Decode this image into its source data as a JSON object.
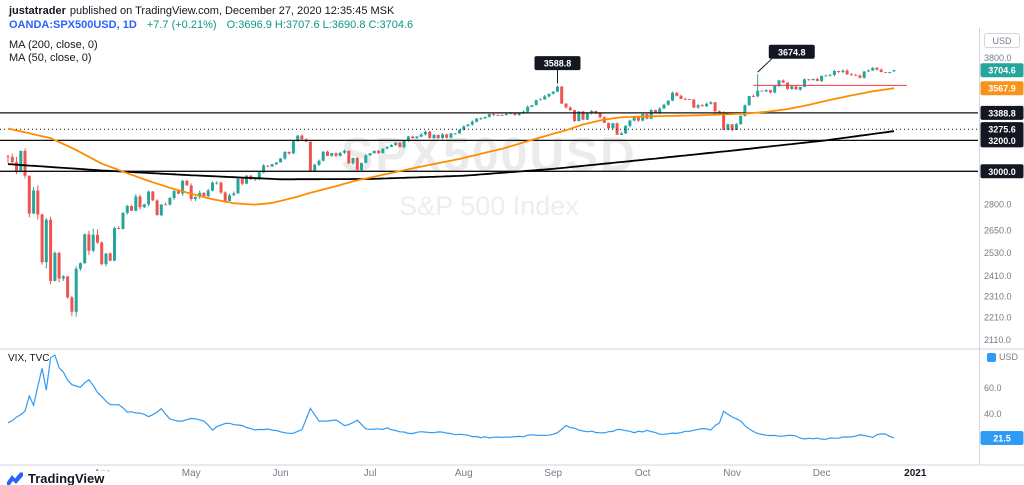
{
  "header": {
    "author": "justatrader",
    "published": "published on TradingView.com, December 27, 2020 12:35:45 MSK",
    "symbol": "OANDA:SPX500USD, 1D",
    "change": "+7.7 (+0.21%)",
    "ohlc": "O:3696.9 H:3707.6 L:3690.8 C:3704.6"
  },
  "legends": {
    "ma200": "MA (200, close, 0)",
    "ma50": "MA (50, close, 0)"
  },
  "watermark": {
    "line1": "SPX500USD",
    "line2": "S&P 500 Index"
  },
  "currency_main": "USD",
  "currency_vix": "USD",
  "vix_label": "VIX, TVC",
  "logo_text": "TradingView",
  "colors": {
    "up": "#26a69a",
    "down": "#ef5350",
    "ma50": "#ff8c00",
    "ma200": "#000000",
    "vix": "#2f9bf4",
    "ray": "#f23645",
    "level_line": "#111111",
    "badge_last": "#26a69a",
    "badge_ma": "#f7931a",
    "badge_level": "#131722",
    "badge_vix": "#2f9bf4",
    "axis_text": "#787b86",
    "separator": "#d1d4dc",
    "callout": "#131722"
  },
  "chart_data": {
    "type": "candlestick",
    "symbol": "OANDA:SPX500USD",
    "interval": "1D",
    "scale": "log",
    "last": {
      "open": 3696.9,
      "high": 3707.6,
      "low": 3690.8,
      "close": 3704.6,
      "change_text": "+7.7 (+0.21%)"
    },
    "closes": [
      3090,
      3058,
      3003,
      3130,
      2972,
      2746,
      2882,
      2741,
      2481,
      2711,
      2386,
      2529,
      2398,
      2409,
      2305,
      2237,
      2447,
      2476,
      2630,
      2541,
      2627,
      2585,
      2471,
      2527,
      2489,
      2664,
      2659,
      2750,
      2790,
      2762,
      2846,
      2783,
      2800,
      2875,
      2823,
      2737,
      2799,
      2798,
      2837,
      2878,
      2863,
      2940,
      2912,
      2831,
      2843,
      2868,
      2848,
      2881,
      2930,
      2930,
      2870,
      2820,
      2853,
      2864,
      2954,
      2923,
      2972,
      2949,
      2955,
      2992,
      3036,
      3030,
      3044,
      3056,
      3081,
      3123,
      3113,
      3194,
      3232,
      3207,
      3190,
      3002,
      3041,
      3067,
      3125,
      3098,
      3115,
      3098,
      3118,
      3131,
      3050,
      3084,
      3009,
      3053,
      3101,
      3115,
      3130,
      3116,
      3146,
      3156,
      3169,
      3185,
      3155,
      3197,
      3226,
      3216,
      3225,
      3239,
      3258,
      3216,
      3236,
      3216,
      3240,
      3218,
      3246,
      3247,
      3271,
      3295,
      3307,
      3327,
      3349,
      3351,
      3360,
      3380,
      3375,
      3374,
      3373,
      3382,
      3390,
      3375,
      3386,
      3397,
      3432,
      3444,
      3479,
      3485,
      3508,
      3527,
      3543,
      3580,
      3455,
      3427,
      3409,
      3332,
      3399,
      3341,
      3384,
      3402,
      3386,
      3358,
      3319,
      3282,
      3316,
      3237,
      3247,
      3298,
      3335,
      3363,
      3335,
      3381,
      3348,
      3409,
      3390,
      3420,
      3447,
      3477,
      3534,
      3512,
      3489,
      3488,
      3484,
      3427,
      3443,
      3436,
      3454,
      3465,
      3401,
      3391,
      3271,
      3310,
      3270,
      3310,
      3369,
      3443,
      3510,
      3509,
      3550,
      3545,
      3554,
      3537,
      3585,
      3627,
      3610,
      3562,
      3582,
      3558,
      3578,
      3635,
      3630,
      3638,
      3622,
      3662,
      3663,
      3669,
      3699,
      3691,
      3702,
      3673,
      3668,
      3663,
      3647,
      3695,
      3702,
      3723,
      3709,
      3691,
      3687,
      3690,
      3704.6
    ],
    "candle_overrides": {
      "129": {
        "high": 3588.8
      },
      "176": {
        "high": 3674.8
      },
      "208": {
        "open": 3696.9,
        "high": 3707.6,
        "low": 3690.8,
        "close": 3704.6
      }
    },
    "ma50": {
      "current": 3567.9,
      "points": [
        [
          0,
          3280
        ],
        [
          10,
          3215
        ],
        [
          15,
          3150
        ],
        [
          22,
          3048
        ],
        [
          28,
          2988
        ],
        [
          33,
          2940
        ],
        [
          38,
          2898
        ],
        [
          43,
          2862
        ],
        [
          48,
          2830
        ],
        [
          53,
          2806
        ],
        [
          58,
          2798
        ],
        [
          62,
          2808
        ],
        [
          67,
          2838
        ],
        [
          71,
          2868
        ],
        [
          77,
          2908
        ],
        [
          82,
          2944
        ],
        [
          86,
          2966
        ],
        [
          96,
          3024
        ],
        [
          106,
          3078
        ],
        [
          116,
          3144
        ],
        [
          126,
          3228
        ],
        [
          131,
          3268
        ],
        [
          135,
          3308
        ],
        [
          140,
          3342
        ],
        [
          144,
          3358
        ],
        [
          150,
          3364
        ],
        [
          156,
          3368
        ],
        [
          162,
          3372
        ],
        [
          168,
          3378
        ],
        [
          173,
          3384
        ],
        [
          178,
          3396
        ],
        [
          183,
          3416
        ],
        [
          188,
          3446
        ],
        [
          193,
          3482
        ],
        [
          198,
          3515
        ],
        [
          203,
          3545
        ],
        [
          208,
          3567.9
        ]
      ]
    },
    "ma200": {
      "points": [
        [
          0,
          3045
        ],
        [
          22,
          3005
        ],
        [
          43,
          2975
        ],
        [
          64,
          2950
        ],
        [
          85,
          2952
        ],
        [
          107,
          2972
        ],
        [
          128,
          3015
        ],
        [
          149,
          3072
        ],
        [
          171,
          3135
        ],
        [
          192,
          3200
        ],
        [
          208,
          3262
        ]
      ]
    },
    "horizontal_levels": [
      {
        "price": 3388.8,
        "style": "solid"
      },
      {
        "price": 3275.6,
        "style": "dotted"
      },
      {
        "price": 3200.0,
        "style": "solid"
      },
      {
        "price": 3000.0,
        "style": "solid"
      }
    ],
    "ray": {
      "price": 3588.8,
      "from_day": 175,
      "to_day": 211
    },
    "callouts": [
      {
        "text": "3588.8",
        "badge_day": 129,
        "badge_price": 3760,
        "point_day": 129,
        "point_price": 3588.8
      },
      {
        "text": "3674.8",
        "badge_day": 184,
        "badge_price": 3850,
        "point_day": 176,
        "point_price": 3674.8
      }
    ],
    "y_axis_ticks": [
      3800,
      2800,
      2650,
      2530,
      2410,
      2310,
      2210,
      2110
    ],
    "y_axis_badges": [
      {
        "price": 3704.6,
        "color_key": "badge_last"
      },
      {
        "price": 3567.9,
        "color_key": "badge_ma"
      },
      {
        "price": 3388.8,
        "color_key": "badge_level"
      },
      {
        "price": 3275.6,
        "color_key": "badge_level"
      },
      {
        "price": 3200.0,
        "color_key": "badge_level"
      },
      {
        "price": 3000.0,
        "color_key": "badge_level"
      }
    ],
    "x_axis": [
      {
        "label": "Apr",
        "day": 22
      },
      {
        "label": "May",
        "day": 43
      },
      {
        "label": "Jun",
        "day": 64
      },
      {
        "label": "Jul",
        "day": 85
      },
      {
        "label": "Aug",
        "day": 107
      },
      {
        "label": "Sep",
        "day": 128
      },
      {
        "label": "Oct",
        "day": 149
      },
      {
        "label": "Nov",
        "day": 170
      },
      {
        "label": "Dec",
        "day": 191
      },
      {
        "label": "2021",
        "day": 213,
        "emphasis": true
      }
    ],
    "sub_chart": {
      "type": "line",
      "label": "VIX, TVC",
      "y_ticks": [
        60,
        40
      ],
      "last": 21.5,
      "points": [
        [
          0,
          33
        ],
        [
          2,
          38
        ],
        [
          4,
          42
        ],
        [
          5,
          54
        ],
        [
          6,
          47
        ],
        [
          8,
          75
        ],
        [
          9,
          58
        ],
        [
          10,
          83
        ],
        [
          11,
          85
        ],
        [
          12,
          76
        ],
        [
          13,
          72
        ],
        [
          14,
          66
        ],
        [
          15,
          62
        ],
        [
          17,
          61
        ],
        [
          19,
          66
        ],
        [
          21,
          57
        ],
        [
          24,
          47
        ],
        [
          26,
          47
        ],
        [
          28,
          42
        ],
        [
          31,
          41
        ],
        [
          33,
          38
        ],
        [
          36,
          44
        ],
        [
          38,
          36
        ],
        [
          41,
          34
        ],
        [
          43,
          37
        ],
        [
          46,
          34
        ],
        [
          48,
          28
        ],
        [
          51,
          33
        ],
        [
          53,
          32
        ],
        [
          56,
          30
        ],
        [
          58,
          28
        ],
        [
          60,
          28
        ],
        [
          62,
          28
        ],
        [
          65,
          26
        ],
        [
          67,
          25
        ],
        [
          69,
          28
        ],
        [
          71,
          44
        ],
        [
          73,
          34
        ],
        [
          77,
          35
        ],
        [
          79,
          31
        ],
        [
          82,
          35
        ],
        [
          84,
          29
        ],
        [
          86,
          28
        ],
        [
          89,
          29
        ],
        [
          91,
          27
        ],
        [
          94,
          25
        ],
        [
          96,
          26
        ],
        [
          99,
          26
        ],
        [
          101,
          26
        ],
        [
          104,
          25
        ],
        [
          106,
          24
        ],
        [
          109,
          23
        ],
        [
          111,
          22
        ],
        [
          114,
          22
        ],
        [
          116,
          22
        ],
        [
          119,
          23
        ],
        [
          121,
          23
        ],
        [
          124,
          24
        ],
        [
          126,
          23
        ],
        [
          129,
          26
        ],
        [
          131,
          31
        ],
        [
          133,
          29
        ],
        [
          135,
          27
        ],
        [
          138,
          26
        ],
        [
          140,
          26
        ],
        [
          142,
          27
        ],
        [
          144,
          28
        ],
        [
          147,
          26
        ],
        [
          150,
          27
        ],
        [
          153,
          25
        ],
        [
          155,
          25
        ],
        [
          158,
          26
        ],
        [
          160,
          27
        ],
        [
          163,
          29
        ],
        [
          165,
          28
        ],
        [
          167,
          33
        ],
        [
          168,
          42
        ],
        [
          170,
          38
        ],
        [
          172,
          35
        ],
        [
          174,
          28
        ],
        [
          176,
          25
        ],
        [
          178,
          24
        ],
        [
          180,
          23
        ],
        [
          183,
          23
        ],
        [
          185,
          23
        ],
        [
          187,
          21
        ],
        [
          189,
          21
        ],
        [
          192,
          21
        ],
        [
          194,
          21
        ],
        [
          196,
          22
        ],
        [
          197,
          22
        ],
        [
          199,
          23
        ],
        [
          201,
          24
        ],
        [
          203,
          22
        ],
        [
          205,
          25
        ],
        [
          206,
          24
        ],
        [
          207,
          23
        ],
        [
          208,
          21.5
        ]
      ]
    }
  }
}
